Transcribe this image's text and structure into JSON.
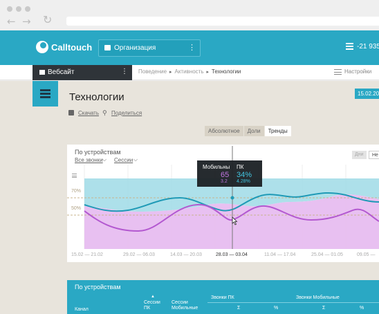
{
  "browser": {
    "back_icon": "arrow-left-icon",
    "forward_icon": "arrow-right-icon"
  },
  "header": {
    "brand": "Calltouch",
    "organization": "Организация",
    "balance": "-21 935"
  },
  "subbar": {
    "site": "Вебсайт",
    "breadcrumb": [
      "Поведение",
      "Активность",
      "Технологии"
    ],
    "settings": "Настройки"
  },
  "page": {
    "title": "Технологии",
    "date": "15.02.20",
    "download": "Скачать",
    "share": "Поделиться"
  },
  "view_modes": [
    {
      "label": "Абсолютное",
      "active": false
    },
    {
      "label": "Доли",
      "active": false
    },
    {
      "label": "Тренды",
      "active": true
    }
  ],
  "chart_card": {
    "title": "По устройствам",
    "dropdown_calls": "Все звонки",
    "dropdown_sessions": "Сессии",
    "granularity_day": "Дни",
    "granularity_week": "Не",
    "y_tick_70": "70%",
    "y_tick_50": "50%",
    "x_ticks": [
      {
        "label": "15.02 — 21.02",
        "active": false
      },
      {
        "label": "29.02 — 06.03",
        "active": false
      },
      {
        "label": "14.03 — 20.03",
        "active": false
      },
      {
        "label": "28.03 — 03.04",
        "active": true
      },
      {
        "label": "11.04 — 17.04",
        "active": false
      },
      {
        "label": "25.04 — 01.05",
        "active": false
      },
      {
        "label": "09.05 —",
        "active": false
      }
    ]
  },
  "tooltip": {
    "mobile_label": "Мобильны",
    "pc_label": "ПК",
    "mobile_value": "65",
    "pc_value": "34%",
    "mobile_share": "3.2",
    "pc_share": "4.28%"
  },
  "chart_data": {
    "type": "area",
    "x": [
      "15.02 — 21.02",
      "29.02 — 06.03",
      "14.03 — 20.03",
      "28.03 — 03.04",
      "11.04 — 17.04",
      "25.04 — 01.05",
      "09.05 —"
    ],
    "series": [
      {
        "name": "ПК",
        "color": "#2aa8c4"
      },
      {
        "name": "Мобильны",
        "color": "#b358d0"
      }
    ]
  },
  "table": {
    "title": "По устройствам",
    "col_channel": "Канал",
    "col_sessions_pc": "Сессии ПК",
    "col_sessions_mobile": "Сессии Мобильные",
    "col_calls_pc": "Звонки ПК",
    "col_calls_mobile": "Звонки Мобильные",
    "sum_symbol": "Σ",
    "pct_symbol": "%"
  },
  "colors": {
    "accent": "#2aa8c4",
    "dark": "#2f3439",
    "mobile": "#b358d0",
    "pc": "#2aa8c4"
  }
}
